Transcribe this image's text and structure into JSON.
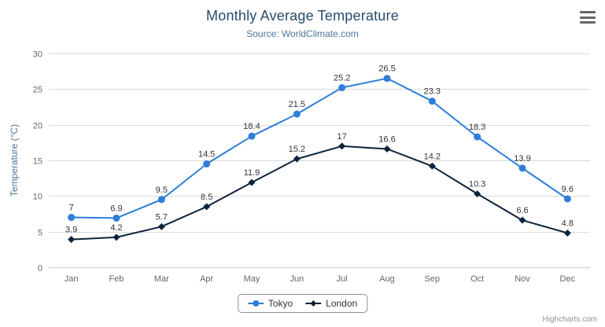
{
  "header": {
    "title": "Monthly Average Temperature",
    "subtitle": "Source: WorldClimate.com"
  },
  "icons": {
    "export_menu": "hamburger-menu-icon"
  },
  "chart_data": {
    "type": "line",
    "title": "Monthly Average Temperature",
    "subtitle": "Source: WorldClimate.com",
    "categories": [
      "Jan",
      "Feb",
      "Mar",
      "Apr",
      "May",
      "Jun",
      "Jul",
      "Aug",
      "Sep",
      "Oct",
      "Nov",
      "Dec"
    ],
    "series": [
      {
        "name": "Tokyo",
        "color": "#2f7ed8",
        "marker": "circle",
        "values": [
          7,
          6.9,
          9.5,
          14.5,
          18.4,
          21.5,
          25.2,
          26.5,
          23.3,
          18.3,
          13.9,
          9.6
        ]
      },
      {
        "name": "London",
        "color": "#0d233a",
        "marker": "diamond",
        "values": [
          3.9,
          4.2,
          5.7,
          8.5,
          11.9,
          15.2,
          17,
          16.6,
          14.2,
          10.3,
          6.6,
          4.8
        ]
      }
    ],
    "xlabel": "",
    "ylabel": "Temperature (°C)",
    "ylim": [
      0,
      30
    ],
    "yticks": [
      0,
      5,
      10,
      15,
      20,
      25,
      30
    ],
    "grid": true,
    "data_labels": true,
    "legend_position": "bottom"
  },
  "legend": {
    "items": [
      "Tokyo",
      "London"
    ]
  },
  "credits": {
    "text": "Highcharts.com"
  },
  "colors": {
    "title": "#274b6d",
    "subtitle": "#4d759e",
    "axis_labels": "#666666",
    "gridline": "#d8d8d8",
    "axis_line": "#c0d0e0",
    "data_label": "#333333",
    "legend_border": "#909090"
  }
}
